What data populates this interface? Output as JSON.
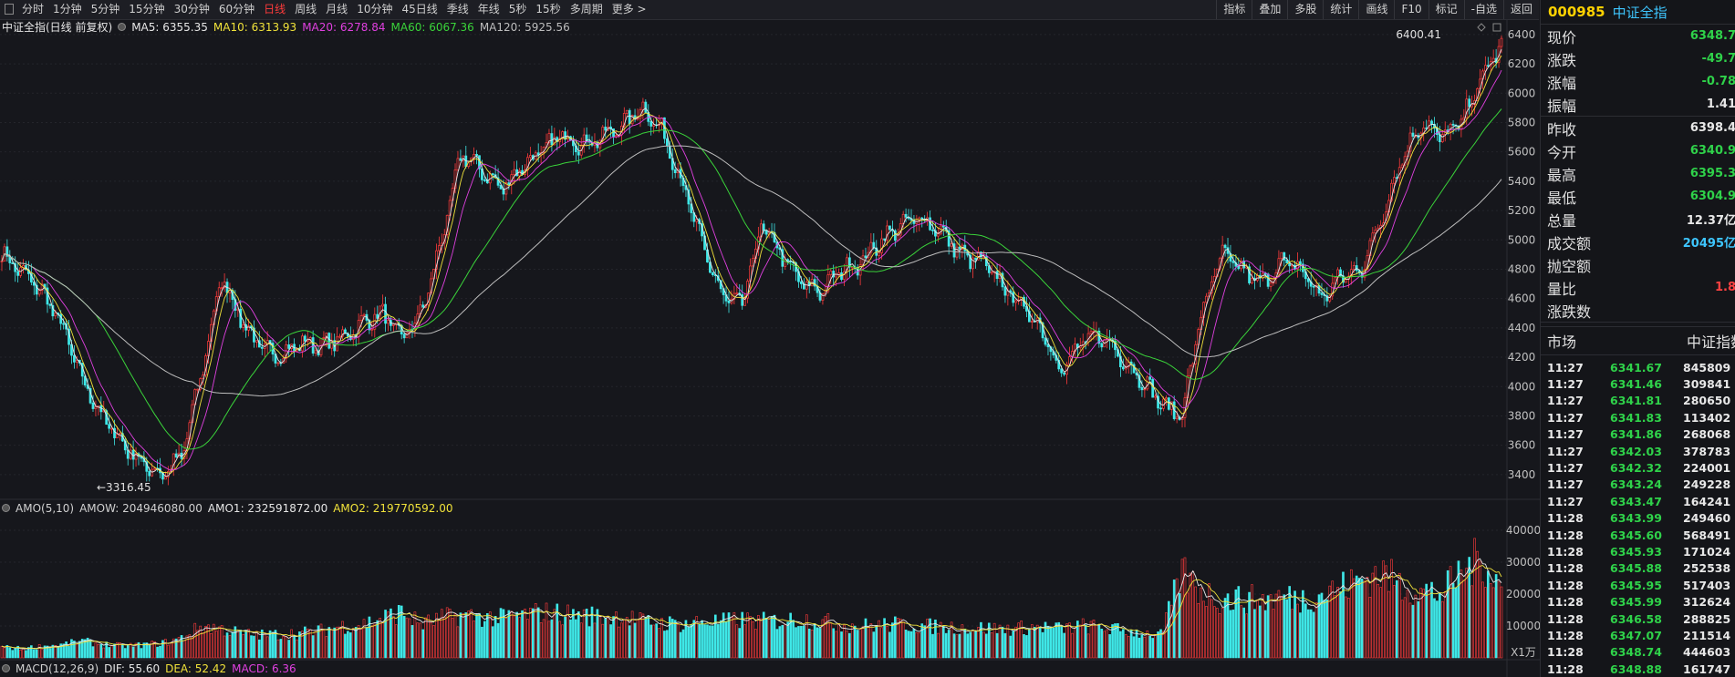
{
  "toolbar": {
    "periods": [
      "分时",
      "1分钟",
      "5分钟",
      "15分钟",
      "30分钟",
      "60分钟",
      "日线",
      "周线",
      "月线",
      "10分钟",
      "45日线",
      "季线",
      "年线",
      "5秒",
      "15秒",
      "多周期",
      "更多 >"
    ],
    "active_period": "日线",
    "tools": [
      "指标",
      "叠加",
      "多股",
      "统计",
      "画线",
      "F10",
      "标记",
      "-自选",
      "返回"
    ]
  },
  "main_chart": {
    "instrument_label": "中证全指(日线 前复权)",
    "indicators": [
      {
        "label": "MA5: 6355.35",
        "color": "#e6e6e6"
      },
      {
        "label": "MA10: 6313.93",
        "color": "#f0e23a"
      },
      {
        "label": "MA20: 6278.84",
        "color": "#e040e0"
      },
      {
        "label": "MA60: 6067.36",
        "color": "#3ad33a"
      },
      {
        "label": "MA120: 5925.56",
        "color": "#bdbdbd"
      }
    ],
    "high_marker": "6400.41",
    "low_marker": "←3316.45",
    "y_ticks": [
      "6400",
      "6200",
      "6000",
      "5800",
      "5600",
      "5400",
      "5200",
      "5000",
      "4800",
      "4600",
      "4400",
      "4200",
      "4000",
      "3800",
      "3600",
      "3400"
    ]
  },
  "chart_data": {
    "type": "line",
    "title": "中证全指(日线 前复权)",
    "xlabel": "",
    "ylabel": "",
    "ylim": [
      3250,
      6480
    ],
    "series": [
      {
        "name": "MA5",
        "values": [
          4900,
          4780,
          4650,
          4420,
          4050,
          3800,
          3620,
          3480,
          3400,
          3520,
          4100,
          4750,
          4450,
          4250,
          4220,
          4300,
          4280,
          4330,
          4430,
          4500,
          4330,
          4500,
          5000,
          5600,
          5470,
          5350,
          5500,
          5600,
          5720,
          5650,
          5700,
          5780,
          5900,
          5750,
          5400,
          4980,
          4620,
          4550,
          5100,
          4900,
          4700,
          4650,
          4800,
          4850,
          5000,
          5100,
          5150,
          5050,
          4900,
          4850,
          4700,
          4550,
          4400,
          4100,
          4300,
          4350,
          4200,
          4050,
          3880,
          3800,
          4500,
          4900,
          4800,
          4700,
          4850,
          4800,
          4600,
          4750,
          4800,
          5150,
          5550,
          5800,
          5700,
          5800,
          6100,
          6340
        ]
      }
    ],
    "volume": {
      "name": "AMO",
      "unit": "X1万",
      "ylim": [
        0,
        44000
      ],
      "y_ticks": [
        "40000",
        "30000",
        "20000",
        "10000"
      ],
      "values": [
        3500,
        3000,
        3800,
        4200,
        5500,
        4500,
        3900,
        4200,
        4800,
        6500,
        10500,
        9500,
        8000,
        7500,
        7800,
        8200,
        9000,
        10500,
        11000,
        13000,
        15000,
        11000,
        13000,
        14000,
        13500,
        13000,
        14000,
        15000,
        14500,
        14000,
        13500,
        13800,
        12000,
        11500,
        11000,
        12000,
        11800,
        12500,
        12000,
        12200,
        12800,
        12000,
        11000,
        10500,
        10800,
        11000,
        10500,
        10200,
        10000,
        9800,
        9500,
        9800,
        10200,
        9500,
        10500,
        10000,
        9000,
        8200,
        7500,
        28000,
        22000,
        19000,
        19500,
        19000,
        20000,
        19500,
        21000,
        23000,
        26000,
        28000,
        24000,
        22000,
        21000,
        28000,
        33000,
        23000
      ]
    }
  },
  "amo": {
    "labels": [
      {
        "text": "AMO(5,10)",
        "color": "#d0d0d0"
      },
      {
        "text": "AMOW: 204946080.00",
        "color": "#d0d0d0"
      },
      {
        "text": "AMO1: 232591872.00",
        "color": "#e6e6e6"
      },
      {
        "text": "AMO2: 219770592.00",
        "color": "#f0e23a"
      }
    ],
    "unit_label": "X1万"
  },
  "macd": {
    "labels": [
      {
        "text": "MACD(12,26,9)",
        "color": "#d0d0d0"
      },
      {
        "text": "DIF: 55.60",
        "color": "#e6e6e6"
      },
      {
        "text": "DEA: 52.42",
        "color": "#f0e23a"
      },
      {
        "text": "MACD: 6.36",
        "color": "#e040e0"
      }
    ]
  },
  "sidebar": {
    "code": "000985",
    "name": "中证全指",
    "quote": [
      {
        "label": "现价",
        "value": "6348.7",
        "color": "#2fd24a"
      },
      {
        "label": "涨跌",
        "value": "-49.7",
        "color": "#2fd24a"
      },
      {
        "label": "涨幅",
        "value": "-0.78",
        "color": "#2fd24a"
      },
      {
        "label": "振幅",
        "value": "1.41",
        "color": "#e8e8e8"
      },
      {
        "label": "昨收",
        "value": "6398.4",
        "color": "#e8e8e8"
      },
      {
        "label": "今开",
        "value": "6340.9",
        "color": "#2fd24a"
      },
      {
        "label": "最高",
        "value": "6395.3",
        "color": "#2fd24a"
      },
      {
        "label": "最低",
        "value": "6304.9",
        "color": "#2fd24a"
      },
      {
        "label": "总量",
        "value": "12.37亿",
        "color": "#e8e8e8"
      },
      {
        "label": "成交额",
        "value": "20495亿",
        "color": "#3ec6ff"
      },
      {
        "label": "抛空额",
        "value": "",
        "color": "#e8e8e8"
      },
      {
        "label": "量比",
        "value": "1.8",
        "color": "#ff4141"
      },
      {
        "label": "涨跌数",
        "value": "",
        "color": "#e8e8e8"
      }
    ],
    "market_label": "市场",
    "index_label": "中证指数",
    "ticks": [
      {
        "time": "11:27",
        "price": "6341.67",
        "vol": "845809"
      },
      {
        "time": "11:27",
        "price": "6341.46",
        "vol": "309841"
      },
      {
        "time": "11:27",
        "price": "6341.81",
        "vol": "280650"
      },
      {
        "time": "11:27",
        "price": "6341.83",
        "vol": "113402"
      },
      {
        "time": "11:27",
        "price": "6341.86",
        "vol": "268068"
      },
      {
        "time": "11:27",
        "price": "6342.03",
        "vol": "378783"
      },
      {
        "time": "11:27",
        "price": "6342.32",
        "vol": "224001"
      },
      {
        "time": "11:27",
        "price": "6343.24",
        "vol": "249228"
      },
      {
        "time": "11:27",
        "price": "6343.47",
        "vol": "164241"
      },
      {
        "time": "11:28",
        "price": "6343.99",
        "vol": "249460"
      },
      {
        "time": "11:28",
        "price": "6345.60",
        "vol": "568491"
      },
      {
        "time": "11:28",
        "price": "6345.93",
        "vol": "171024"
      },
      {
        "time": "11:28",
        "price": "6345.88",
        "vol": "252538"
      },
      {
        "time": "11:28",
        "price": "6345.95",
        "vol": "517403"
      },
      {
        "time": "11:28",
        "price": "6345.99",
        "vol": "312624"
      },
      {
        "time": "11:28",
        "price": "6346.58",
        "vol": "288825"
      },
      {
        "time": "11:28",
        "price": "6347.07",
        "vol": "211514"
      },
      {
        "time": "11:28",
        "price": "6348.74",
        "vol": "444603"
      },
      {
        "time": "11:28",
        "price": "6348.88",
        "vol": "161747"
      }
    ]
  }
}
